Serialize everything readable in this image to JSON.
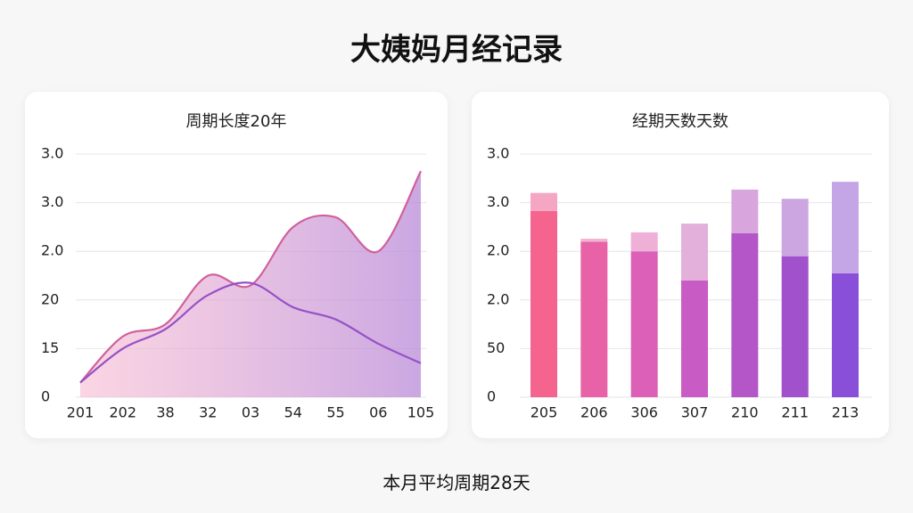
{
  "title": "大姨妈月经记录",
  "footer": "本月平均周期28天",
  "chart_data": [
    {
      "type": "line",
      "title": "周期长度20年",
      "categories": [
        "201",
        "202",
        "38",
        "32",
        "03",
        "54",
        "55",
        "06",
        "105"
      ],
      "ylim": [
        0,
        5
      ],
      "yticks": [
        {
          "value": 0,
          "label": "0"
        },
        {
          "value": 1,
          "label": "15"
        },
        {
          "value": 2,
          "label": "20"
        },
        {
          "value": 3,
          "label": "2.0"
        },
        {
          "value": 4,
          "label": "3.0"
        },
        {
          "value": 5,
          "label": "3.0"
        }
      ],
      "grid": true,
      "series": [
        {
          "color": "#d0609c",
          "fill": true,
          "values": [
            0.3,
            1.25,
            1.5,
            2.5,
            2.3,
            3.5,
            3.7,
            3.0,
            4.65
          ]
        },
        {
          "color": "#9650c8",
          "values": [
            0.3,
            1.0,
            1.4,
            2.1,
            2.35,
            1.85,
            1.6,
            1.1,
            0.7
          ]
        }
      ]
    },
    {
      "type": "bar",
      "title": "经期天数天数",
      "stacked": true,
      "categories": [
        "205",
        "206",
        "306",
        "307",
        "210",
        "211",
        "213"
      ],
      "ylim": [
        0,
        5
      ],
      "yticks": [
        {
          "value": 0,
          "label": "0"
        },
        {
          "value": 1,
          "label": "50"
        },
        {
          "value": 2,
          "label": "2.0"
        },
        {
          "value": 3,
          "label": "2.0"
        },
        {
          "value": 4,
          "label": "3.0"
        },
        {
          "value": 5,
          "label": "3.0"
        }
      ],
      "grid": true,
      "series": [
        {
          "colors": [
            "#f5648f",
            "#e862a8",
            "#dc5fb8",
            "#c85cc4",
            "#b455c8",
            "#a251cc",
            "#8a4fd8"
          ],
          "values": [
            3.83,
            3.2,
            3.0,
            2.4,
            3.37,
            2.9,
            2.55
          ]
        },
        {
          "colors": [
            "#f4a6c2",
            "#f0b5d0",
            "#eeb0d6",
            "#e3b0dc",
            "#d8a5dd",
            "#cba6e0",
            "#c4a6e6"
          ],
          "values": [
            0.37,
            0.06,
            0.39,
            1.17,
            0.9,
            1.18,
            1.88
          ]
        }
      ]
    }
  ]
}
